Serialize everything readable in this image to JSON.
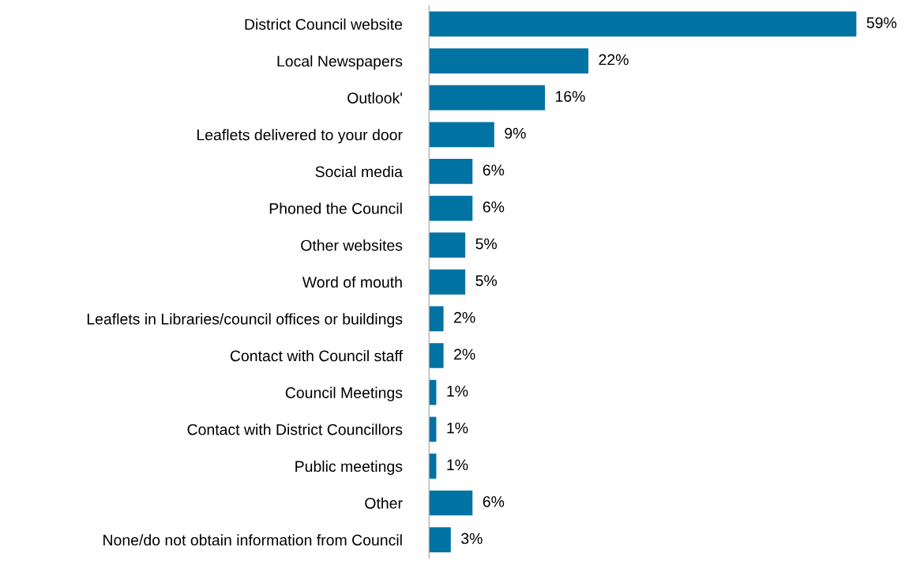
{
  "chart_data": {
    "type": "bar",
    "orientation": "horizontal",
    "categories": [
      "District Council website",
      "Local Newspapers",
      "Outlook'",
      "Leaflets delivered to your door",
      "Social media",
      "Phoned the Council",
      "Other websites",
      "Word of mouth",
      "Leaflets in Libraries/council offices or buildings",
      "Contact with Council staff",
      "Council Meetings",
      "Contact with District Councillors",
      "Public meetings",
      "Other",
      "None/do not obtain information from Council"
    ],
    "values": [
      59,
      22,
      16,
      9,
      6,
      6,
      5,
      5,
      2,
      2,
      1,
      1,
      1,
      6,
      3
    ],
    "value_labels": [
      "59%",
      "22%",
      "16%",
      "9%",
      "6%",
      "6%",
      "5%",
      "5%",
      "2%",
      "2%",
      "1%",
      "1%",
      "1%",
      "6%",
      "3%"
    ],
    "color": "#0073a3",
    "grid": false,
    "legend": false
  }
}
